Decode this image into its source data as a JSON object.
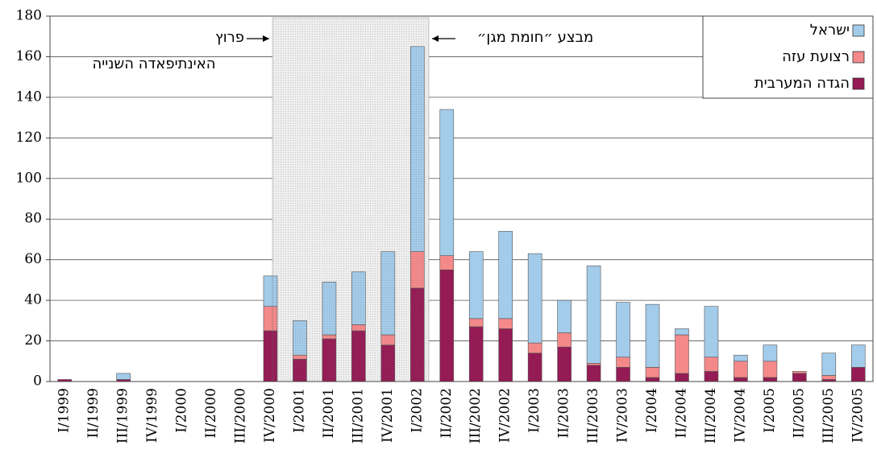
{
  "chart_data": {
    "type": "stacked_bar",
    "categories": [
      "I/1999",
      "II/1999",
      "III/1999",
      "IV/1999",
      "I/2000",
      "II/2000",
      "III/2000",
      "IV/2000",
      "I/2001",
      "II/2001",
      "III/2001",
      "IV/2001",
      "I/2002",
      "II/2002",
      "III/2002",
      "IV/2002",
      "I/2003",
      "II/2003",
      "III/2003",
      "IV/2003",
      "I/2004",
      "II/2004",
      "III/2004",
      "IV/2004",
      "I/2005",
      "II/2005",
      "III/2005",
      "IV/2005"
    ],
    "series": [
      {
        "name": "הגדה המערבית",
        "color": "#951b54",
        "values": [
          1,
          0,
          1,
          0,
          0,
          0,
          0,
          25,
          11,
          21,
          25,
          18,
          46,
          55,
          27,
          26,
          14,
          17,
          8,
          7,
          2,
          4,
          5,
          2,
          2,
          4,
          1,
          7
        ]
      },
      {
        "name": "רצועת עזה",
        "color": "#f4898a",
        "values": [
          0,
          0,
          0,
          0,
          0,
          0,
          0,
          12,
          2,
          2,
          3,
          5,
          18,
          7,
          4,
          5,
          5,
          7,
          1,
          5,
          5,
          19,
          7,
          8,
          8,
          1,
          2,
          0
        ]
      },
      {
        "name": "ישראל",
        "color": "#a3cbea",
        "values": [
          0,
          0,
          3,
          0,
          0,
          0,
          0,
          15,
          17,
          26,
          26,
          41,
          101,
          72,
          33,
          43,
          44,
          16,
          48,
          27,
          31,
          3,
          25,
          3,
          8,
          0,
          11,
          11
        ]
      }
    ],
    "ylim": [
      0,
      180
    ],
    "yticks": [
      0,
      20,
      40,
      60,
      80,
      100,
      120,
      140,
      160,
      180
    ],
    "grid": true,
    "legend": "top-right",
    "annotations": [
      "פרוץ",
      "האינתיפאדה השנייה",
      "מבצע ״חומת מגן״"
    ]
  }
}
